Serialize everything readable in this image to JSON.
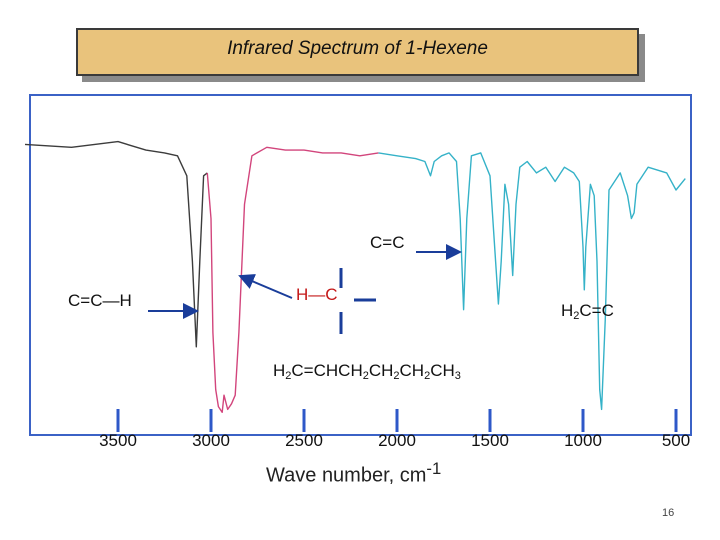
{
  "title": "Infrared Spectrum of 1-Hexene",
  "page_number": "16",
  "colors": {
    "trace_gray": "#3c3c3c",
    "trace_pink": "#d2457c",
    "trace_cyan": "#35b2c8",
    "tick_blue": "#2e58c8",
    "frame_blue": "#3b62c6",
    "title_fill": "#e9c37c",
    "annotation_red": "#c41818"
  },
  "annotations": {
    "cc_double_top": "C=C",
    "cc_h": "C=C—H",
    "hc_left": "H",
    "hc_dash": "—",
    "hc_right": "C",
    "h2cc_h2": "H",
    "h2cc_sub": "2",
    "h2cc_rest": "C=C",
    "formula_parts": [
      "H",
      "2",
      "C=CHCH",
      "2",
      "CH",
      "2",
      "CH",
      "2",
      "CH",
      "3"
    ]
  },
  "axis": {
    "title_main": "Wave number, cm",
    "title_sup": "-1"
  },
  "chart_data": {
    "type": "line",
    "title": "Infrared Spectrum of 1-Hexene",
    "xlabel": "Wave number, cm-1",
    "ylabel": "",
    "x_reversed": true,
    "xlim": [
      4000,
      450
    ],
    "x_ticks": [
      3500,
      3000,
      2500,
      2000,
      1500,
      1000,
      500
    ],
    "x_tick_labels": [
      "3500",
      "3000",
      "2500",
      "2000",
      "1500",
      "1000",
      "500"
    ],
    "y_unit": "relative transmittance (1 = baseline, 0 = strongest absorption)",
    "series": [
      {
        "color": "#3c3c3c",
        "x": [
          4000,
          3750,
          3500,
          3350,
          3250,
          3180,
          3130,
          3100,
          3079,
          3060,
          3040,
          3020
        ],
        "y": [
          0.96,
          0.95,
          0.97,
          0.94,
          0.93,
          0.92,
          0.85,
          0.55,
          0.25,
          0.55,
          0.85,
          0.86
        ]
      },
      {
        "color": "#d2457c",
        "x": [
          3020,
          3000,
          2990,
          2975,
          2960,
          2940,
          2930,
          2910,
          2890,
          2870,
          2850,
          2820,
          2780,
          2700,
          2600,
          2500,
          2400,
          2300,
          2200,
          2100
        ],
        "y": [
          0.86,
          0.7,
          0.3,
          0.1,
          0.04,
          0.02,
          0.08,
          0.03,
          0.05,
          0.08,
          0.3,
          0.75,
          0.92,
          0.95,
          0.94,
          0.94,
          0.93,
          0.93,
          0.92,
          0.93
        ]
      },
      {
        "color": "#35b2c8",
        "x": [
          2100,
          2000,
          1900,
          1850,
          1820,
          1800,
          1760,
          1720,
          1680,
          1660,
          1642,
          1625,
          1600,
          1550,
          1500,
          1470,
          1455,
          1440,
          1420,
          1400,
          1378,
          1360,
          1340,
          1300,
          1250,
          1200,
          1150,
          1100,
          1050,
          1020,
          1000,
          993,
          985,
          960,
          940,
          925,
          910,
          900,
          880,
          860,
          800,
          760,
          740,
          725,
          710,
          650,
          600,
          550,
          500,
          450
        ],
        "y": [
          0.93,
          0.92,
          0.91,
          0.9,
          0.85,
          0.9,
          0.92,
          0.93,
          0.9,
          0.7,
          0.38,
          0.7,
          0.92,
          0.93,
          0.85,
          0.55,
          0.4,
          0.55,
          0.82,
          0.75,
          0.5,
          0.75,
          0.88,
          0.9,
          0.86,
          0.88,
          0.83,
          0.88,
          0.86,
          0.83,
          0.6,
          0.45,
          0.6,
          0.82,
          0.78,
          0.55,
          0.1,
          0.03,
          0.35,
          0.8,
          0.86,
          0.78,
          0.7,
          0.72,
          0.82,
          0.88,
          0.87,
          0.86,
          0.8,
          0.84
        ]
      }
    ]
  }
}
